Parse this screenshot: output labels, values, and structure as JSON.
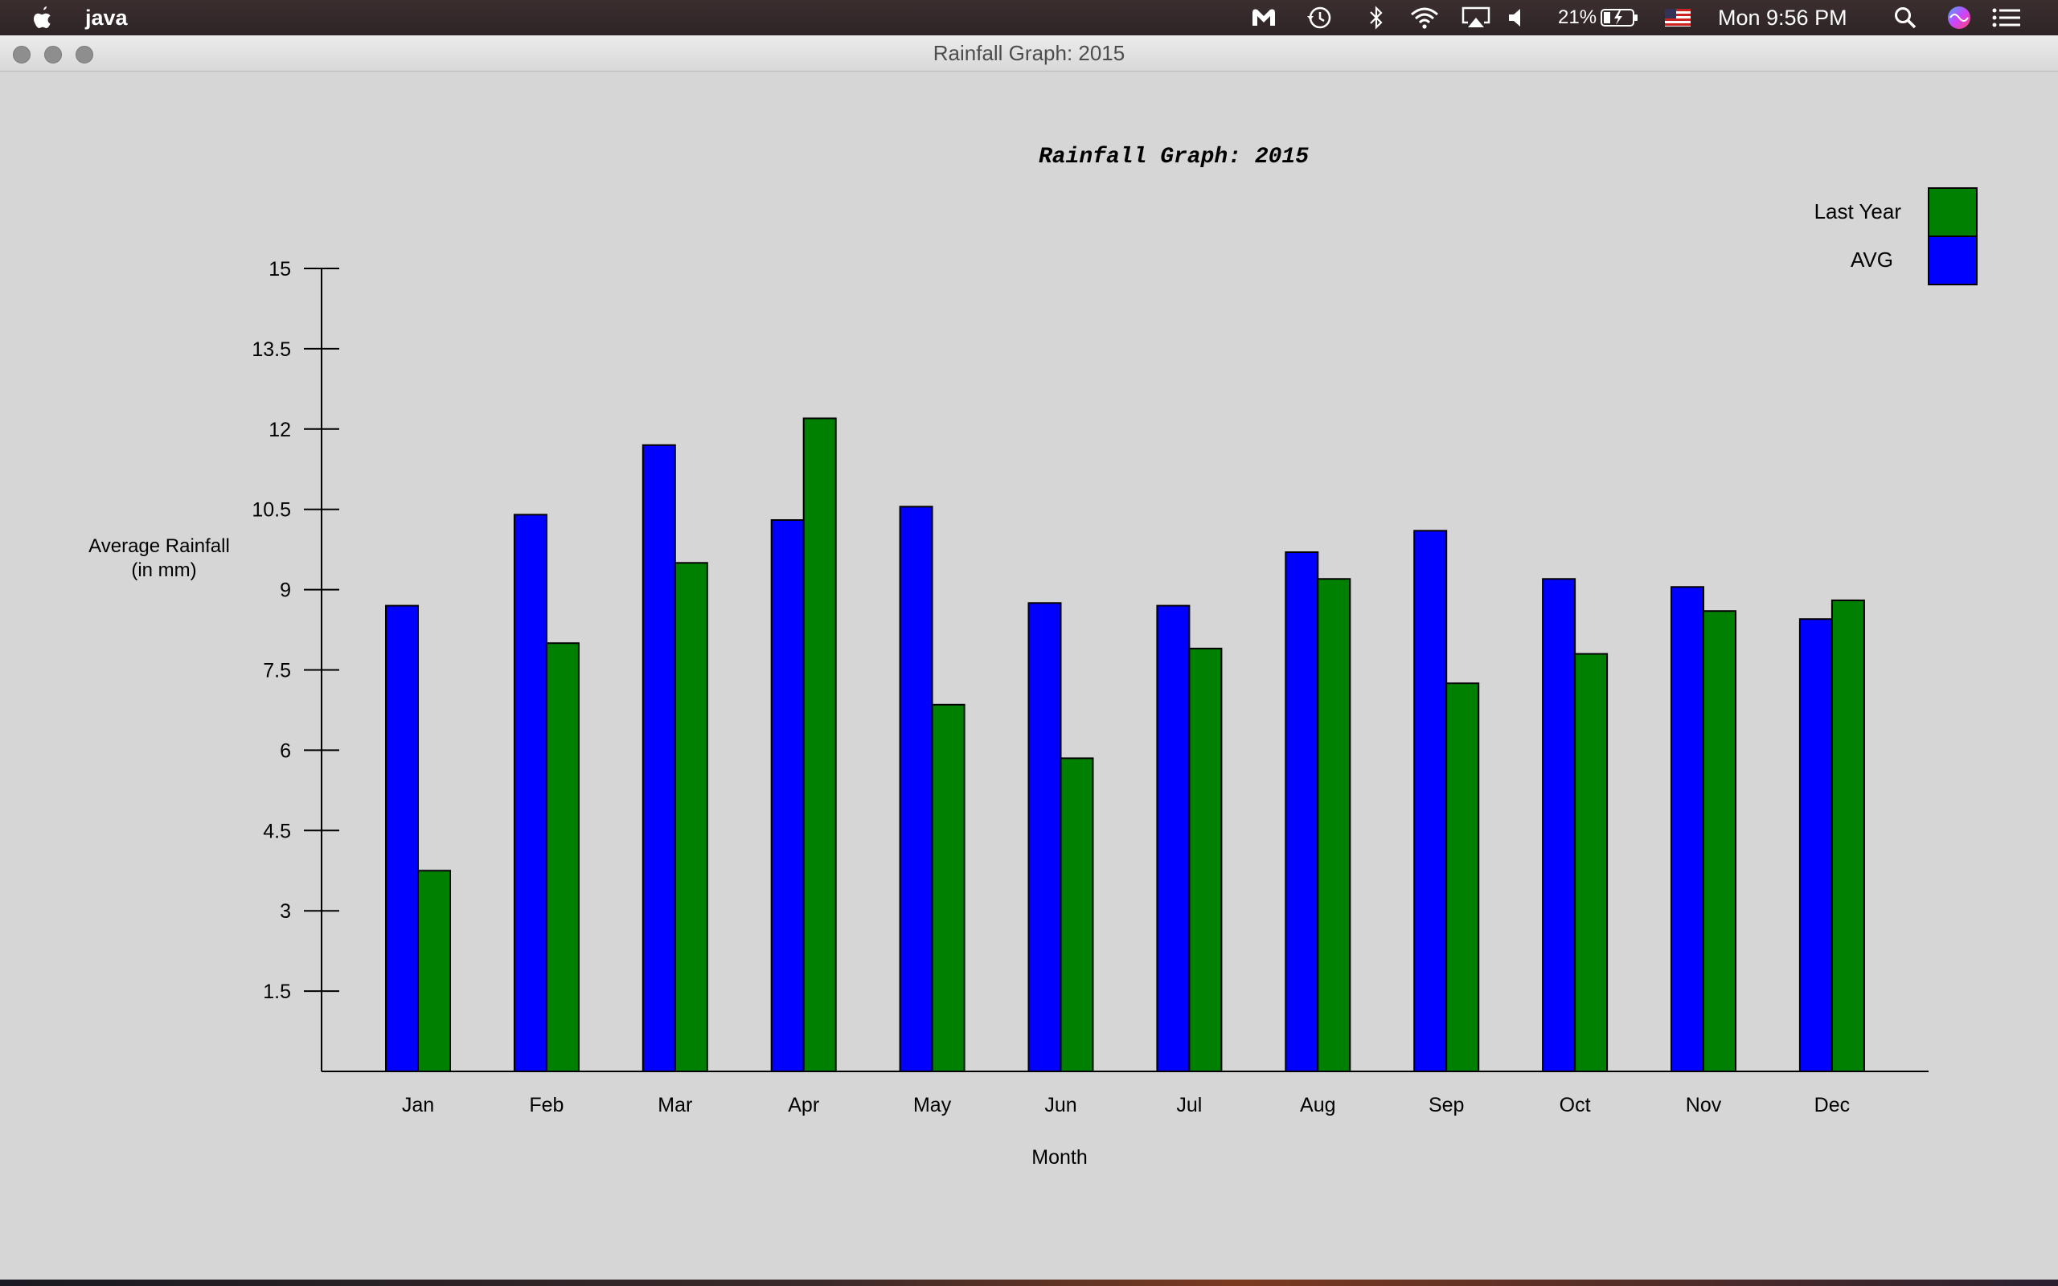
{
  "menubar": {
    "app_name": "java",
    "battery_percent": "21%",
    "clock": "Mon 9:56 PM",
    "icons": [
      "apple-icon",
      "malwarebytes-icon",
      "time-machine-icon",
      "bluetooth-icon",
      "wifi-icon",
      "airplay-icon",
      "volume-icon",
      "battery-icon",
      "us-flag-icon",
      "spotlight-icon",
      "siri-icon",
      "notification-center-icon"
    ]
  },
  "window": {
    "title": "Rainfall Graph: 2015"
  },
  "chart_data": {
    "type": "bar",
    "title": "Rainfall Graph: 2015",
    "xlabel": "Month",
    "ylabel_lines": [
      "Average Rainfall",
      "(in mm)"
    ],
    "categories": [
      "Jan",
      "Feb",
      "Mar",
      "Apr",
      "May",
      "Jun",
      "Jul",
      "Aug",
      "Sep",
      "Oct",
      "Nov",
      "Dec"
    ],
    "y_ticks": [
      "1.5",
      "3",
      "4.5",
      "6",
      "7.5",
      "9",
      "10.5",
      "12",
      "13.5",
      "15"
    ],
    "ylim": [
      0,
      15
    ],
    "legend_position": "top-right",
    "series": [
      {
        "name": "AVG",
        "color": "#0000ff",
        "values": [
          8.7,
          10.4,
          11.7,
          10.3,
          10.55,
          8.75,
          8.7,
          9.7,
          10.1,
          9.2,
          9.05,
          8.45
        ]
      },
      {
        "name": "Last Year",
        "color": "#008000",
        "values": [
          3.75,
          8.0,
          9.5,
          12.2,
          6.85,
          5.85,
          7.9,
          9.2,
          7.25,
          7.8,
          8.6,
          8.8
        ]
      }
    ],
    "legend": [
      {
        "label": "Last Year",
        "color": "#008000"
      },
      {
        "label": "AVG",
        "color": "#0000ff"
      }
    ]
  }
}
